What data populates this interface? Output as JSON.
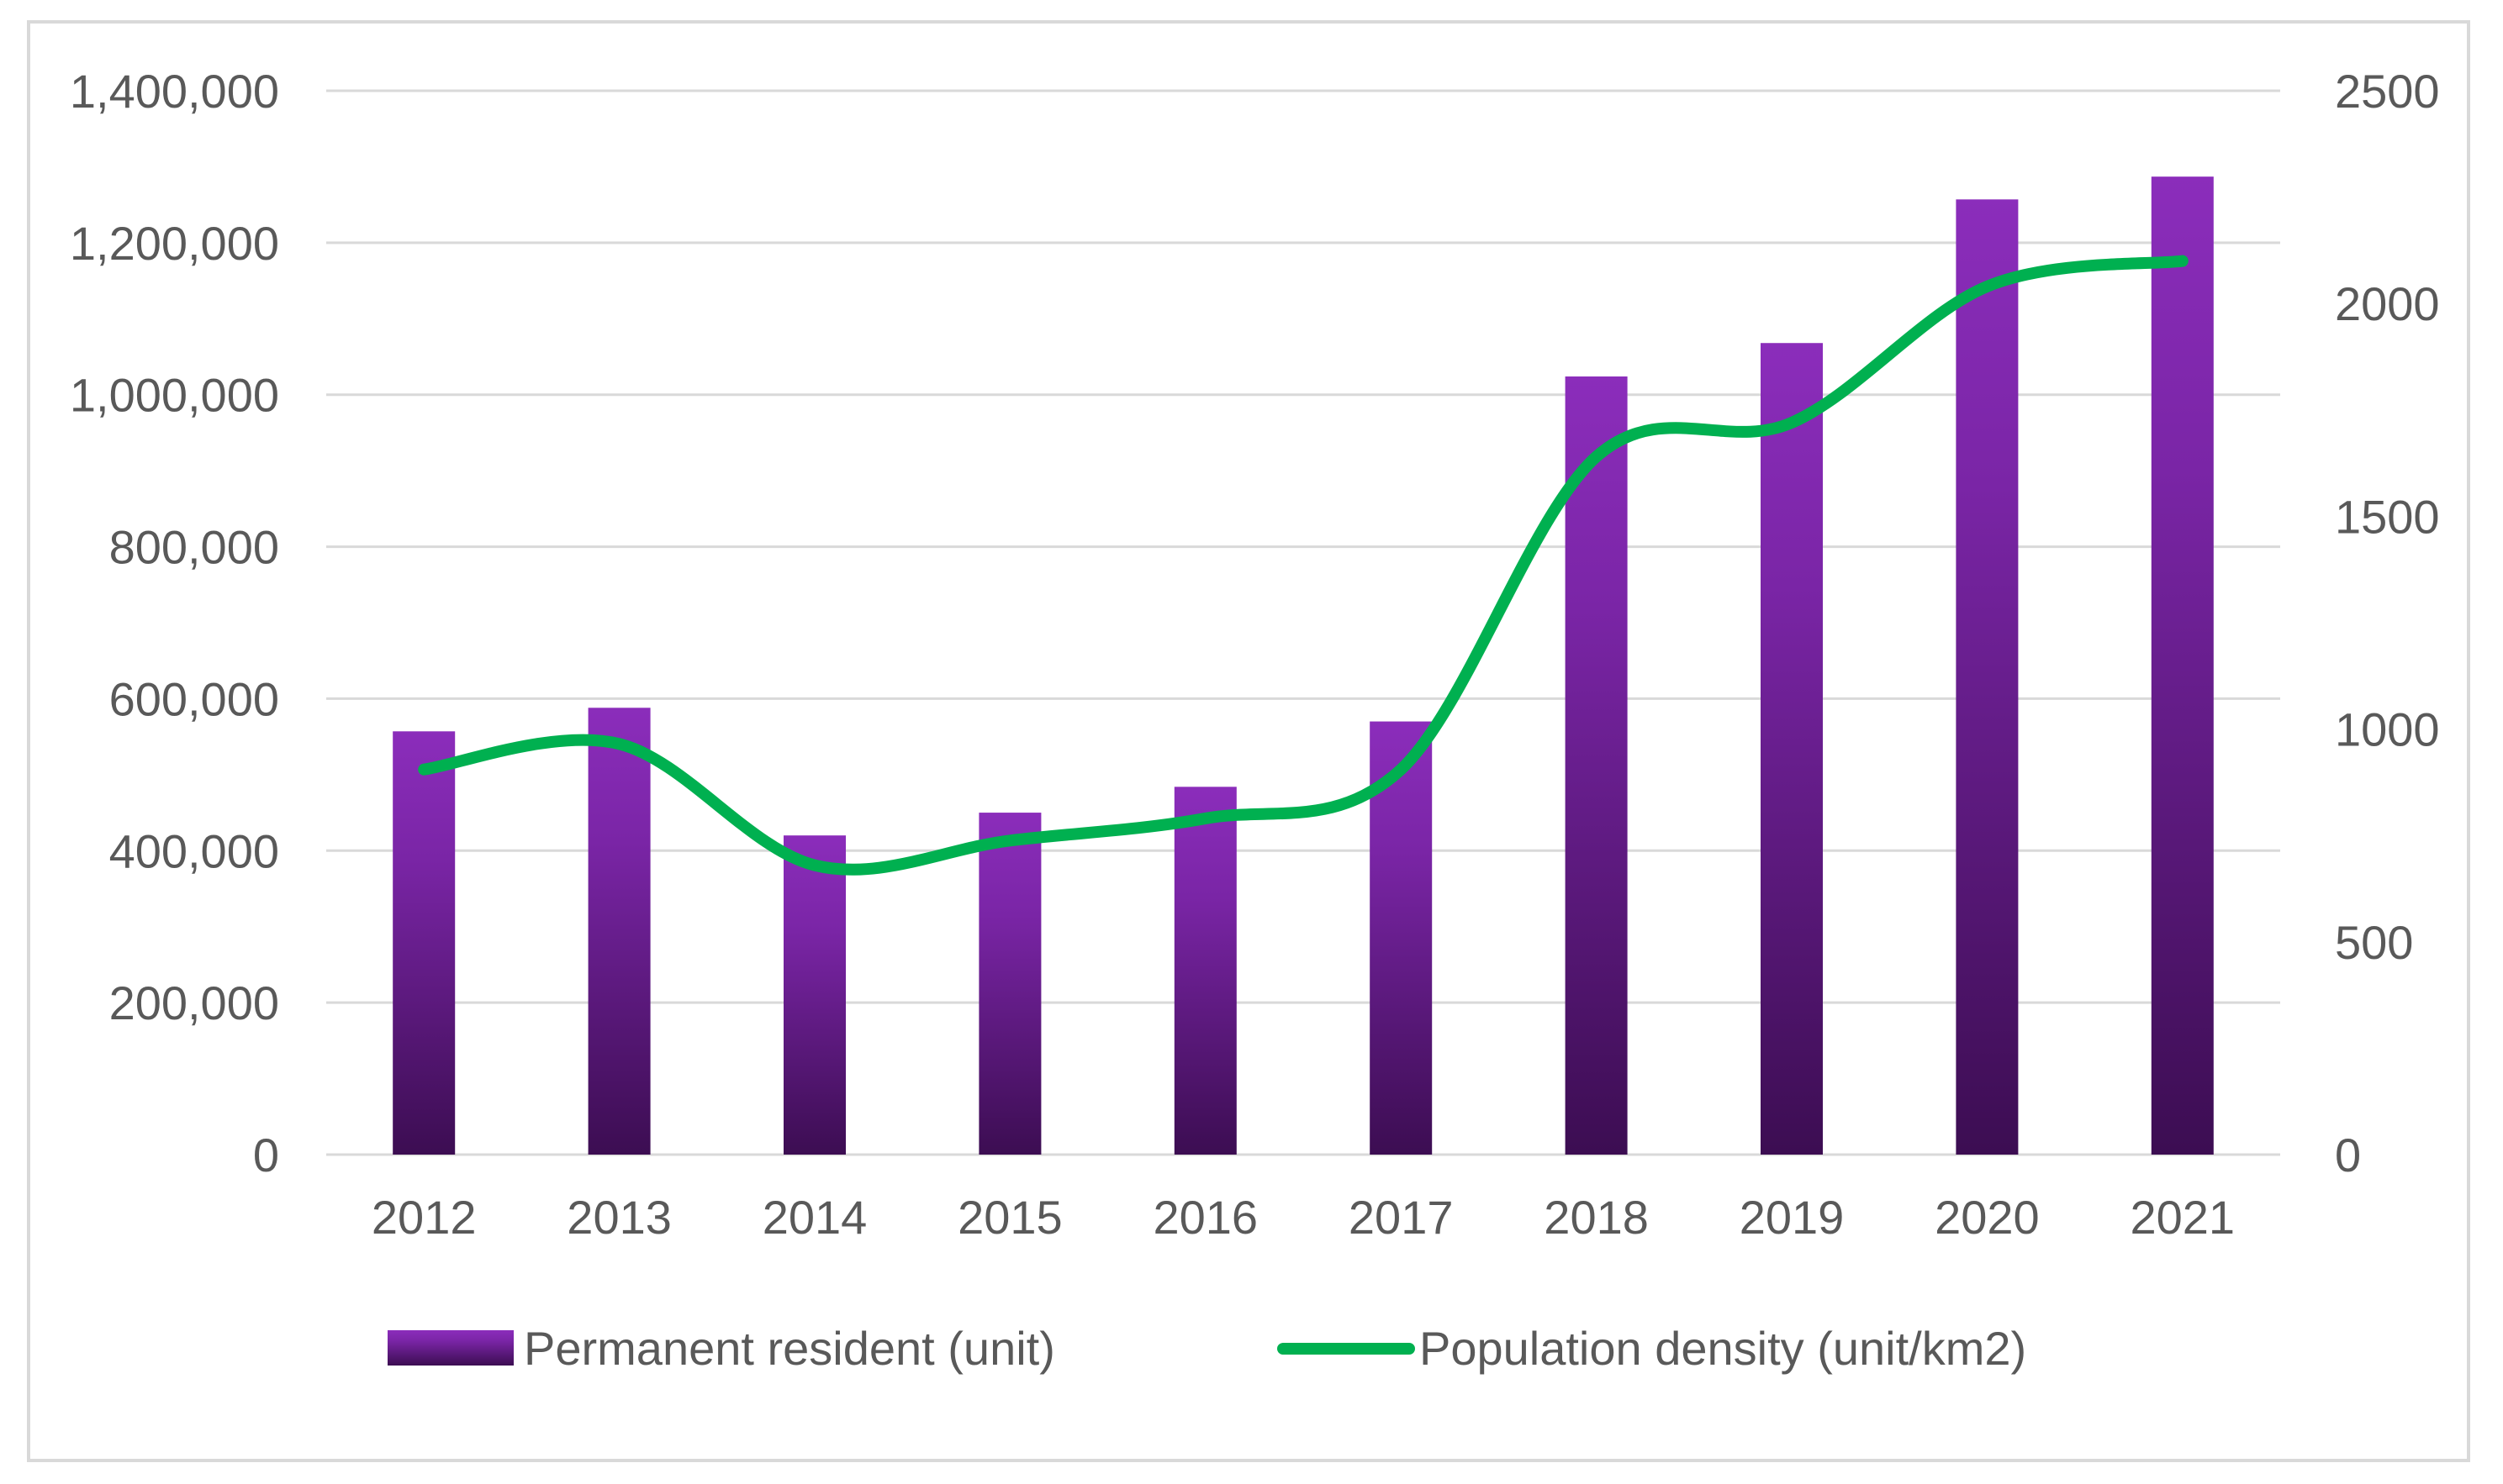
{
  "chart_data": {
    "type": "bar",
    "title": "",
    "categories": [
      "2012",
      "2013",
      "2014",
      "2015",
      "2016",
      "2017",
      "2018",
      "2019",
      "2020",
      "2021"
    ],
    "series": [
      {
        "name": "Permanent resident (unit)",
        "kind": "bar",
        "axis": "left",
        "values": [
          557000,
          588000,
          420000,
          450000,
          484000,
          570000,
          1024000,
          1068000,
          1257000,
          1287000
        ]
      },
      {
        "name": "Population density (unit/km2)",
        "kind": "line",
        "axis": "right",
        "values": [
          905,
          965,
          680,
          738,
          790,
          905,
          1640,
          1720,
          2040,
          2100
        ]
      }
    ],
    "y_left": {
      "ylim": [
        0,
        1400000
      ],
      "ticks": [
        0,
        200000,
        400000,
        600000,
        800000,
        1000000,
        1200000,
        1400000
      ],
      "tick_labels": [
        "0",
        "200,000",
        "400,000",
        "600,000",
        "800,000",
        "1,000,000",
        "1,200,000",
        "1,400,000"
      ]
    },
    "y_right": {
      "ylim": [
        0,
        2500
      ],
      "ticks": [
        0,
        500,
        1000,
        1500,
        2000,
        2500
      ],
      "tick_labels": [
        "0",
        "500",
        "1000",
        "1500",
        "2000",
        "2500"
      ]
    },
    "grid": true,
    "legend_position": "bottom",
    "colors": {
      "bar_top": "#8b2dbb",
      "bar_bottom": "#3c0d52",
      "line": "#00b050",
      "grid": "#d9d9d9",
      "tick_text": "#595959"
    }
  }
}
